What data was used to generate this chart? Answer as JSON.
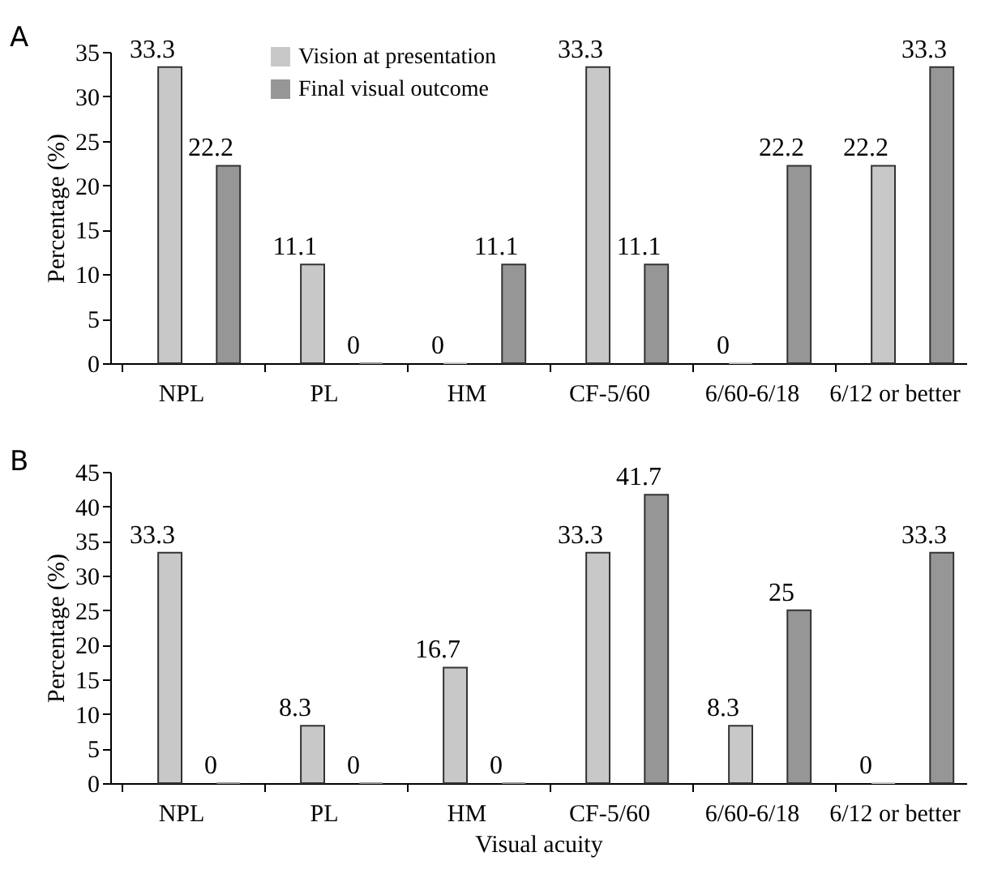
{
  "chart_data": [
    {
      "type": "bar",
      "title": "A",
      "ylabel": "Percentage (%)",
      "categories": [
        "NPL",
        "PL",
        "HM",
        "CF-5/60",
        "6/60-6/18",
        "6/12 or better"
      ],
      "ylim": [
        0,
        35
      ],
      "yticks": [
        0,
        5,
        10,
        15,
        20,
        25,
        30,
        35
      ],
      "grid": false,
      "legend": "top",
      "data_labels": true,
      "series": [
        {
          "name": "Vision at presentation",
          "color": "#c8c8c8",
          "values": [
            33.3,
            11.1,
            0,
            33.3,
            0,
            22.2
          ]
        },
        {
          "name": "Final visual outcome",
          "color": "#969696",
          "values": [
            22.2,
            0,
            11.1,
            11.1,
            22.2,
            33.3
          ]
        }
      ]
    },
    {
      "type": "bar",
      "title": "B",
      "xlabel": "Visual acuity",
      "ylabel": "Percentage (%)",
      "categories": [
        "NPL",
        "PL",
        "HM",
        "CF-5/60",
        "6/60-6/18",
        "6/12 or better"
      ],
      "ylim": [
        0,
        45
      ],
      "yticks": [
        0,
        5,
        10,
        15,
        20,
        25,
        30,
        35,
        40,
        45
      ],
      "grid": false,
      "legend": "top",
      "data_labels": true,
      "series": [
        {
          "name": "Vision at presentation",
          "color": "#c4c4c4",
          "values": [
            33.3,
            8.3,
            16.7,
            33.3,
            8.3,
            0
          ]
        },
        {
          "name": "Final visual outcome",
          "color": "#969696",
          "values": [
            0,
            0,
            0,
            41.7,
            25,
            33.3
          ]
        }
      ]
    }
  ]
}
